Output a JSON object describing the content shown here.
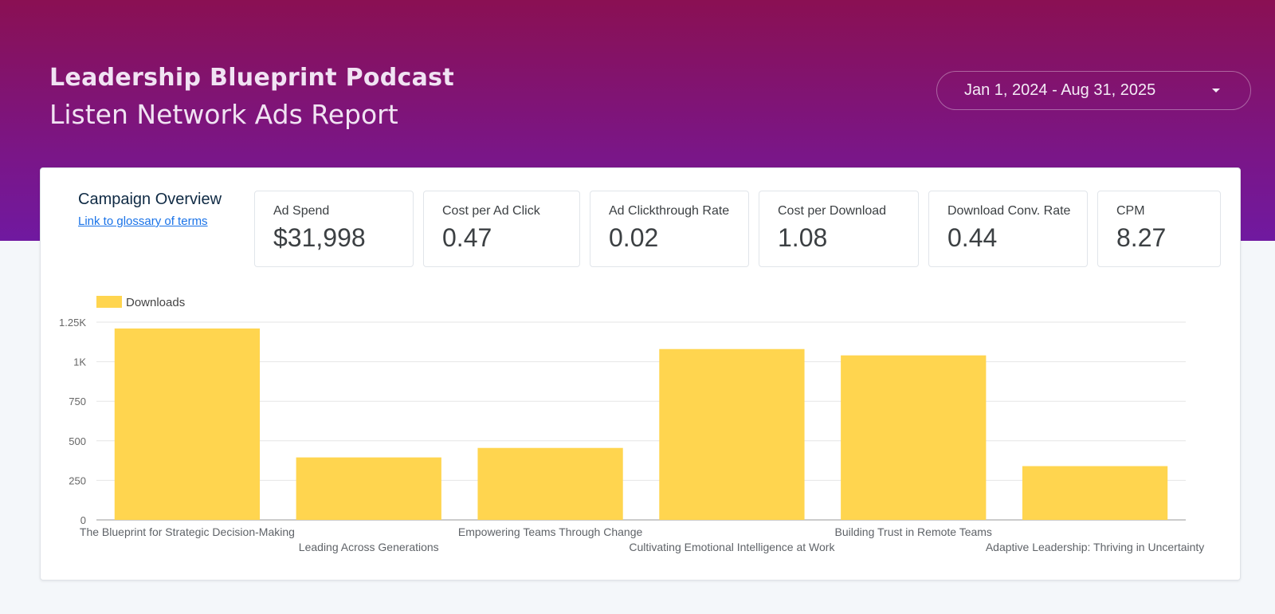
{
  "header": {
    "title": "Leadership Blueprint Podcast",
    "subtitle": "Listen Network Ads Report",
    "date_range": "Jan 1, 2024 - Aug 31, 2025"
  },
  "overview": {
    "title": "Campaign Overview",
    "glossary_link": "Link to glossary of terms"
  },
  "kpis": [
    {
      "label": "Ad Spend",
      "value": "$31,998"
    },
    {
      "label": "Cost per Ad Click",
      "value": "0.47"
    },
    {
      "label": "Ad Clickthrough Rate",
      "value": "0.02"
    },
    {
      "label": "Cost per Download",
      "value": "1.08"
    },
    {
      "label": "Download  Conv. Rate",
      "value": "0.44"
    },
    {
      "label": "CPM",
      "value": "8.27"
    }
  ],
  "colors": {
    "bar": "#ffd54f",
    "grid": "#e6e6e6",
    "axis": "#999999"
  },
  "chart_data": {
    "type": "bar",
    "legend": [
      "Downloads"
    ],
    "categories": [
      "The Blueprint for Strategic Decision-Making",
      "Leading Across Generations",
      "Empowering Teams Through Change",
      "Cultivating Emotional Intelligence at Work",
      "Building Trust in Remote Teams",
      "Adaptive Leadership: Thriving in Uncertainty"
    ],
    "series": [
      {
        "name": "Downloads",
        "values": [
          1210,
          395,
          455,
          1080,
          1040,
          340
        ]
      }
    ],
    "yticks": [
      {
        "value": 0,
        "label": "0"
      },
      {
        "value": 250,
        "label": "250"
      },
      {
        "value": 500,
        "label": "500"
      },
      {
        "value": 750,
        "label": "750"
      },
      {
        "value": 1000,
        "label": "1K"
      },
      {
        "value": 1250,
        "label": "1.25K"
      }
    ],
    "ylim": [
      0,
      1250
    ],
    "grid": true
  }
}
